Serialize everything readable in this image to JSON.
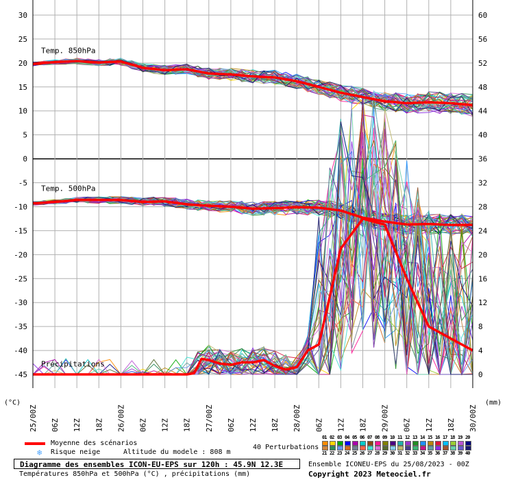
{
  "chart_data": {
    "type": "line",
    "title": "Diagramme des ensembles ICON-EU-EPS sur 120h : 45.9N 12.3E",
    "subtitle": "Températures 850hPa et 500hPa (°C) , précipitations (mm)",
    "left_unit": "(°C)",
    "right_unit": "(mm)",
    "ylim_left": [
      -45,
      30
    ],
    "ylim_right": [
      0,
      64
    ],
    "left_ticks": [
      30,
      25,
      20,
      15,
      10,
      5,
      0,
      -5,
      -10,
      -15,
      -20,
      -25,
      -30,
      -35,
      -40,
      -45
    ],
    "right_ticks": [
      60,
      56,
      52,
      48,
      44,
      40,
      36,
      32,
      28,
      24,
      20,
      16,
      12,
      8,
      4,
      0
    ],
    "x_ticks": [
      "25/00Z",
      "06Z",
      "12Z",
      "18Z",
      "26/00Z",
      "06Z",
      "12Z",
      "18Z",
      "27/00Z",
      "06Z",
      "12Z",
      "18Z",
      "28/00Z",
      "06Z",
      "12Z",
      "18Z",
      "29/00Z",
      "06Z",
      "12Z",
      "18Z",
      "30/00Z"
    ],
    "x_hours": [
      0,
      6,
      12,
      18,
      24,
      30,
      36,
      42,
      48,
      54,
      60,
      66,
      72,
      78,
      84,
      90,
      96,
      102,
      108,
      114,
      120
    ],
    "grid": true,
    "panel_labels": [
      "Temp. 850hPa",
      "Temp. 500hPa",
      "Précipitations"
    ],
    "series": [
      {
        "name": "Temp. 850hPa",
        "axis": "left",
        "x": [
          0,
          6,
          12,
          18,
          24,
          30,
          36,
          42,
          48,
          54,
          60,
          66,
          72,
          78,
          84,
          90,
          96,
          102,
          108,
          114,
          120
        ],
        "values": [
          19.8,
          20.2,
          20.4,
          20.1,
          20.3,
          19.0,
          18.5,
          18.7,
          17.8,
          17.6,
          17.2,
          17.0,
          16.2,
          15.0,
          13.8,
          12.9,
          12.0,
          11.6,
          11.8,
          11.6,
          11.2
        ]
      },
      {
        "name": "Temp. 500hPa",
        "axis": "left",
        "x": [
          0,
          6,
          12,
          18,
          24,
          30,
          36,
          42,
          48,
          54,
          60,
          66,
          72,
          78,
          84,
          90,
          96,
          102,
          108,
          114,
          120
        ],
        "values": [
          -9.3,
          -9.0,
          -8.6,
          -8.6,
          -8.6,
          -9.0,
          -8.9,
          -9.5,
          -9.8,
          -10.0,
          -10.4,
          -10.3,
          -10.1,
          -10.2,
          -10.8,
          -12.3,
          -13.1,
          -13.7,
          -13.6,
          -13.8,
          -13.8
        ]
      },
      {
        "name": "Précipitations",
        "axis": "right",
        "x": [
          0,
          24,
          30,
          36,
          40,
          42,
          44,
          46,
          48,
          51,
          54,
          57,
          60,
          63,
          66,
          69,
          72,
          75,
          78,
          84,
          90,
          96,
          102,
          108,
          114,
          120
        ],
        "values": [
          0,
          0,
          0,
          0,
          0,
          0,
          0.2,
          2.6,
          2.4,
          1.8,
          1.6,
          2.0,
          2.0,
          2.4,
          1.4,
          0.8,
          1.2,
          4.0,
          5.0,
          21.0,
          26.0,
          25.0,
          16.0,
          8.0,
          6.0,
          4.0
        ]
      }
    ],
    "member_count": 40,
    "mean_color": "#ff0000",
    "legend": {
      "mean_label": "Moyenne des scénarios",
      "snow_label": "Risque neige",
      "altitude_label": "Altitude du modele : 808 m",
      "perturbations_label": "40 Perturbations",
      "ensemble_label": "Ensemble ICONEU-EPS du 25/08/2023 - 00Z",
      "copyright": "Copyright 2023 Meteociel.fr",
      "members_row1": [
        "01",
        "02",
        "03",
        "04",
        "05",
        "06",
        "07",
        "08",
        "09",
        "10",
        "11",
        "12",
        "13",
        "14",
        "15",
        "16",
        "17",
        "18",
        "19",
        "20"
      ],
      "members_row2": [
        "21",
        "22",
        "23",
        "24",
        "25",
        "26",
        "27",
        "28",
        "29",
        "30",
        "31",
        "32",
        "33",
        "34",
        "35",
        "36",
        "37",
        "38",
        "39",
        "40"
      ],
      "member_colors": [
        "#ff8c00",
        "#ffd700",
        "#00aa00",
        "#0000ff",
        "#aa00aa",
        "#00cccc",
        "#8b4513",
        "#ff1493",
        "#808000",
        "#4b0082",
        "#20b2aa",
        "#9932cc",
        "#228b22",
        "#1e90ff",
        "#b8860b",
        "#dc143c",
        "#00bfff",
        "#9acd32",
        "#ba55d3",
        "#000080",
        "#cd853f",
        "#2e8b57",
        "#6495ed",
        "#d2691e",
        "#708090",
        "#ff6347",
        "#40e0d0",
        "#da70d6",
        "#556b2f",
        "#87ceeb",
        "#bdb76b",
        "#483d8b",
        "#3cb371",
        "#c71585",
        "#5f9ea0",
        "#8a2be2",
        "#a0522d",
        "#66cdaa",
        "#6a5acd",
        "#191970"
      ]
    }
  }
}
